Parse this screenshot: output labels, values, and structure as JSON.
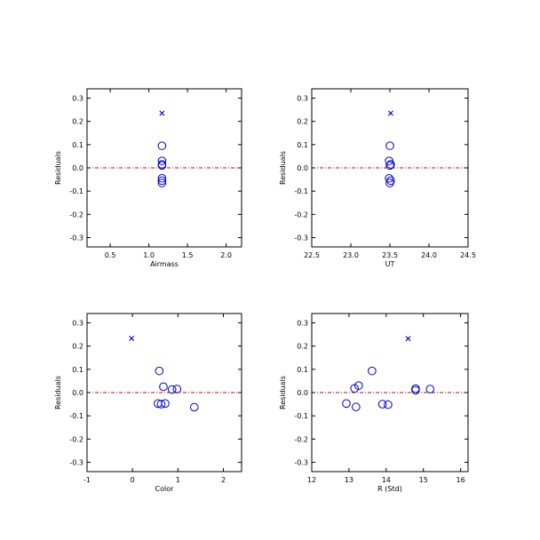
{
  "chart_data": [
    {
      "type": "scatter",
      "xlabel": "Airmass",
      "ylabel": "Residuals",
      "xlim": [
        0.2,
        2.2
      ],
      "ylim": [
        -0.34,
        0.34
      ],
      "xticks": [
        0.5,
        1.0,
        1.5,
        2.0
      ],
      "xtick_labels": [
        "0.5",
        "1.0",
        "1.5",
        "2.0"
      ],
      "yticks": [
        -0.3,
        -0.2,
        -0.1,
        0.0,
        0.1,
        0.2,
        0.3
      ],
      "ytick_labels": [
        "-0.3",
        "-0.2",
        "-0.1",
        "0.0",
        "0.1",
        "0.2",
        "0.3"
      ],
      "reference_line": 0.0,
      "points": [
        {
          "x": 1.17,
          "y": 0.095,
          "marker": "circle"
        },
        {
          "x": 1.17,
          "y": 0.03,
          "marker": "circle"
        },
        {
          "x": 1.17,
          "y": 0.015,
          "marker": "circle"
        },
        {
          "x": 1.17,
          "y": 0.01,
          "marker": "circle"
        },
        {
          "x": 1.17,
          "y": -0.045,
          "marker": "circle"
        },
        {
          "x": 1.17,
          "y": -0.055,
          "marker": "circle"
        },
        {
          "x": 1.17,
          "y": -0.065,
          "marker": "circle"
        },
        {
          "x": 1.17,
          "y": 0.235,
          "marker": "cross"
        }
      ]
    },
    {
      "type": "scatter",
      "xlabel": "UT",
      "ylabel": "Residuals",
      "xlim": [
        22.5,
        24.5
      ],
      "ylim": [
        -0.34,
        0.34
      ],
      "xticks": [
        22.5,
        23.0,
        23.5,
        24.0,
        24.5
      ],
      "xtick_labels": [
        "22.5",
        "23.0",
        "23.5",
        "24.0",
        "24.5"
      ],
      "yticks": [
        -0.3,
        -0.2,
        -0.1,
        0.0,
        0.1,
        0.2,
        0.3
      ],
      "ytick_labels": [
        "-0.3",
        "-0.2",
        "-0.1",
        "0.0",
        "0.1",
        "0.2",
        "0.3"
      ],
      "reference_line": 0.0,
      "points": [
        {
          "x": 23.5,
          "y": 0.095,
          "marker": "circle"
        },
        {
          "x": 23.49,
          "y": 0.03,
          "marker": "circle"
        },
        {
          "x": 23.51,
          "y": 0.015,
          "marker": "circle"
        },
        {
          "x": 23.5,
          "y": 0.01,
          "marker": "circle"
        },
        {
          "x": 23.49,
          "y": -0.045,
          "marker": "circle"
        },
        {
          "x": 23.51,
          "y": -0.055,
          "marker": "circle"
        },
        {
          "x": 23.5,
          "y": -0.065,
          "marker": "circle"
        },
        {
          "x": 23.51,
          "y": 0.235,
          "marker": "cross"
        }
      ]
    },
    {
      "type": "scatter",
      "xlabel": "Color",
      "ylabel": "Residuals",
      "xlim": [
        -1,
        2.4
      ],
      "ylim": [
        -0.34,
        0.34
      ],
      "xticks": [
        -1,
        0,
        1,
        2
      ],
      "xtick_labels": [
        "-1",
        "0",
        "1",
        "2"
      ],
      "yticks": [
        -0.3,
        -0.2,
        -0.1,
        0.0,
        0.1,
        0.2,
        0.3
      ],
      "ytick_labels": [
        "-0.3",
        "-0.2",
        "-0.1",
        "0.0",
        "0.1",
        "0.2",
        "0.3"
      ],
      "reference_line": 0.0,
      "points": [
        {
          "x": 0.59,
          "y": 0.093,
          "marker": "circle"
        },
        {
          "x": 0.68,
          "y": 0.025,
          "marker": "circle"
        },
        {
          "x": 0.87,
          "y": 0.013,
          "marker": "circle"
        },
        {
          "x": 0.98,
          "y": 0.015,
          "marker": "circle"
        },
        {
          "x": 0.56,
          "y": -0.047,
          "marker": "circle"
        },
        {
          "x": 0.63,
          "y": -0.05,
          "marker": "circle"
        },
        {
          "x": 0.72,
          "y": -0.047,
          "marker": "circle"
        },
        {
          "x": 1.36,
          "y": -0.063,
          "marker": "circle"
        },
        {
          "x": -0.02,
          "y": 0.233,
          "marker": "cross"
        }
      ]
    },
    {
      "type": "scatter",
      "xlabel": "R (Std)",
      "ylabel": "Residuals",
      "xlim": [
        12,
        16.2
      ],
      "ylim": [
        -0.34,
        0.34
      ],
      "xticks": [
        12,
        13,
        14,
        15,
        16
      ],
      "xtick_labels": [
        "12",
        "13",
        "14",
        "15",
        "16"
      ],
      "yticks": [
        -0.3,
        -0.2,
        -0.1,
        0.0,
        0.1,
        0.2,
        0.3
      ],
      "ytick_labels": [
        "-0.3",
        "-0.2",
        "-0.1",
        "0.0",
        "0.1",
        "0.2",
        "0.3"
      ],
      "reference_line": 0.0,
      "points": [
        {
          "x": 13.62,
          "y": 0.093,
          "marker": "circle"
        },
        {
          "x": 13.26,
          "y": 0.03,
          "marker": "circle"
        },
        {
          "x": 13.15,
          "y": 0.018,
          "marker": "circle"
        },
        {
          "x": 14.79,
          "y": 0.017,
          "marker": "circle"
        },
        {
          "x": 14.79,
          "y": 0.01,
          "marker": "circle"
        },
        {
          "x": 15.18,
          "y": 0.015,
          "marker": "circle"
        },
        {
          "x": 12.93,
          "y": -0.047,
          "marker": "circle"
        },
        {
          "x": 13.19,
          "y": -0.062,
          "marker": "circle"
        },
        {
          "x": 13.9,
          "y": -0.05,
          "marker": "circle"
        },
        {
          "x": 14.05,
          "y": -0.052,
          "marker": "circle"
        },
        {
          "x": 14.59,
          "y": 0.232,
          "marker": "cross"
        }
      ]
    }
  ],
  "colors": {
    "marker": "#0000cc",
    "reference_line": "#cc0000",
    "axes": "#000000"
  }
}
